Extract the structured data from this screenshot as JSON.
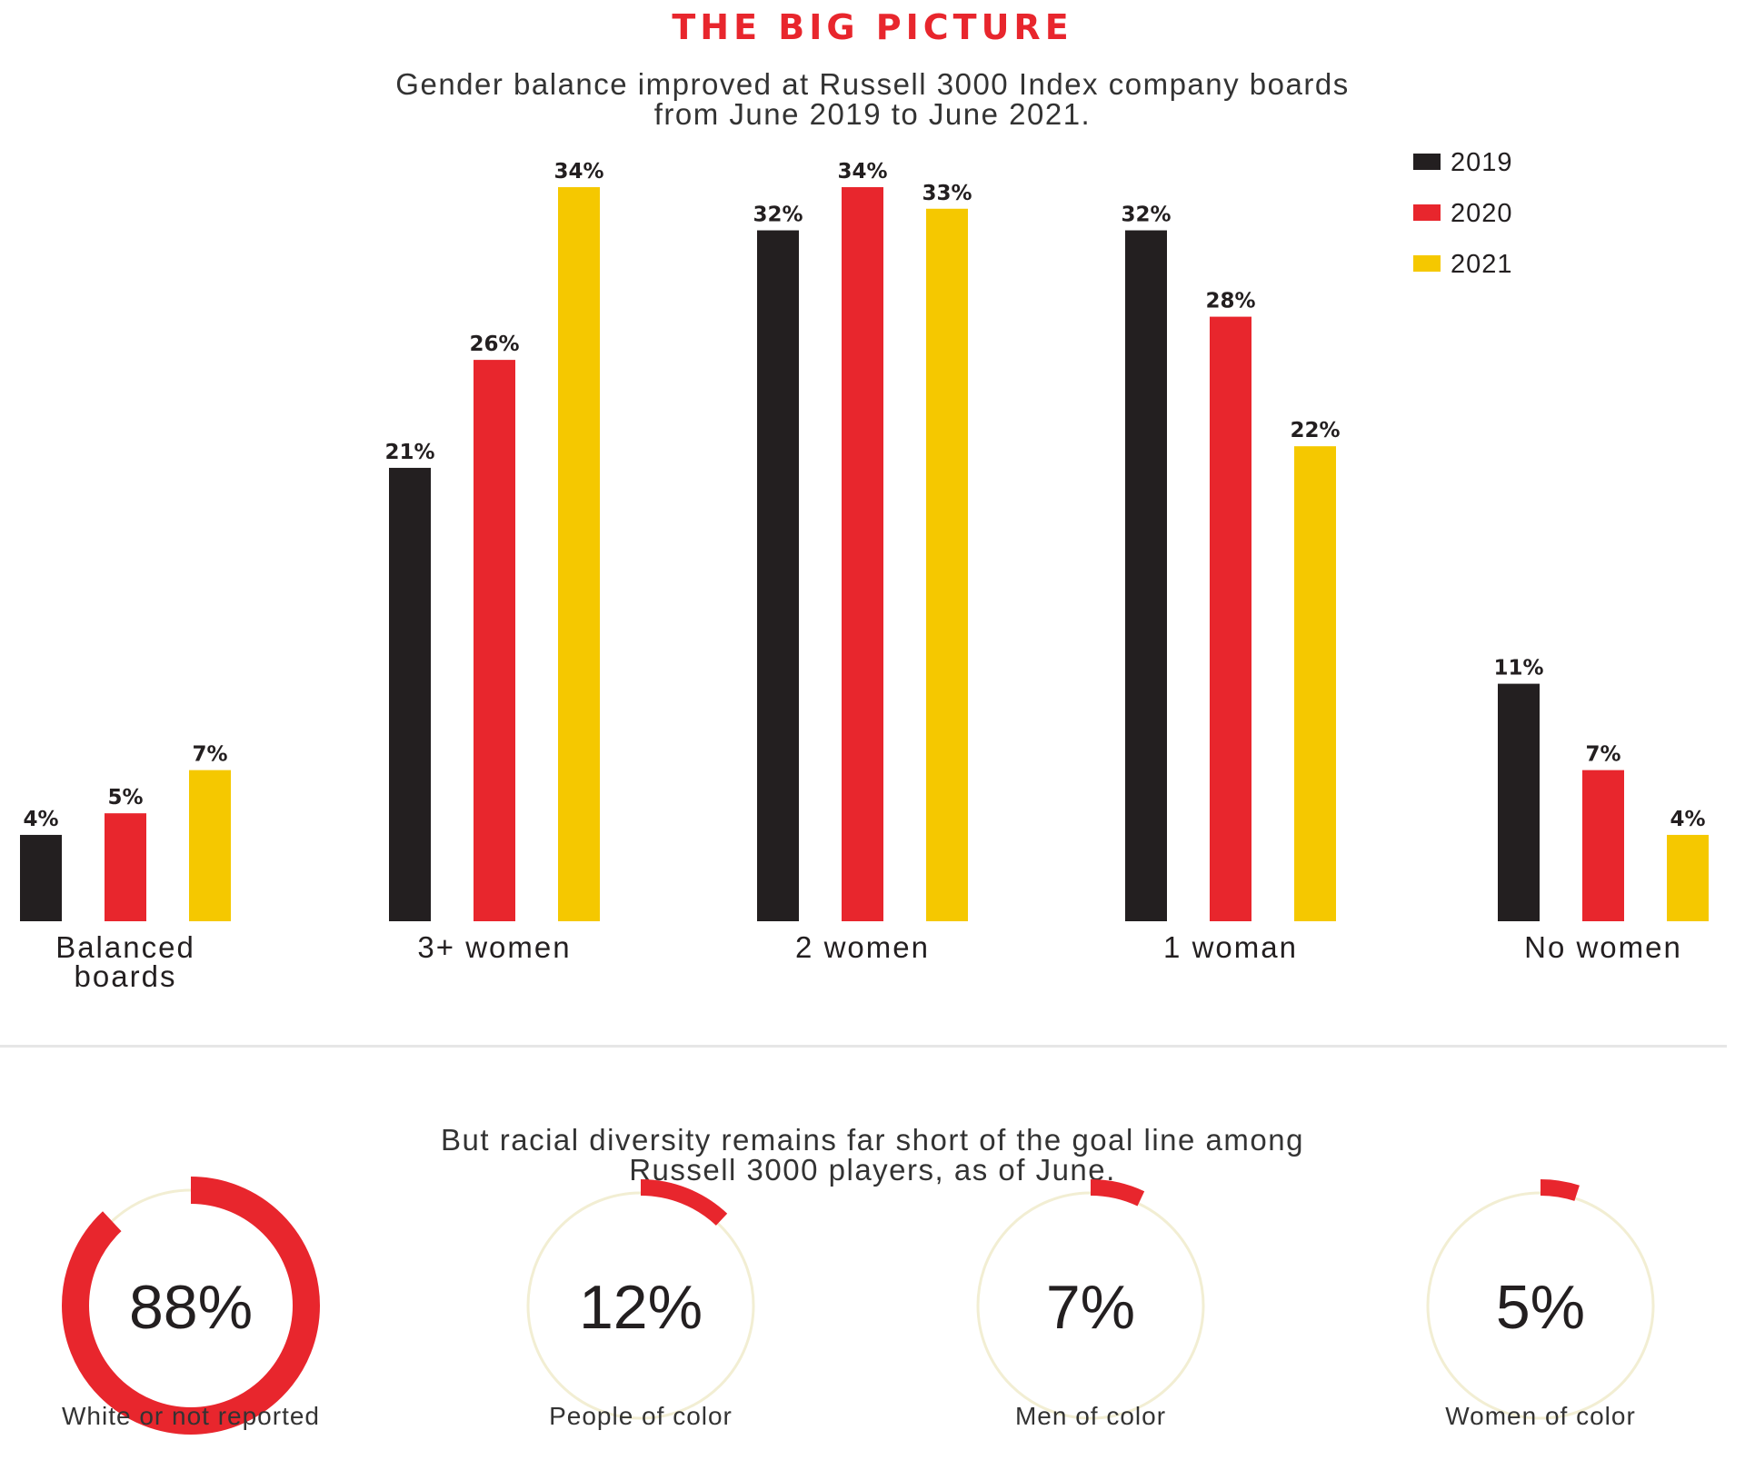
{
  "kicker": "THE BIG PICTURE",
  "chart_subtitle": [
    "Gender balance improved at Russell 3000 Index company boards",
    "from June 2019 to June 2021."
  ],
  "colors": {
    "2019": "#231f20",
    "2020": "#e8262d",
    "2021": "#f5c800",
    "accent": "#e8262d",
    "track": "#f2eed3"
  },
  "chart_data": {
    "type": "bar",
    "title": "",
    "xlabel": "",
    "ylabel": "",
    "ylim": [
      0,
      34
    ],
    "grid": false,
    "legend_position": "top-right",
    "categories": [
      [
        "Balanced",
        "boards"
      ],
      [
        "3+ women"
      ],
      [
        "2 women"
      ],
      [
        "1 woman"
      ],
      [
        "No women"
      ]
    ],
    "series": [
      {
        "name": "2019",
        "values": [
          4,
          21,
          32,
          32,
          11
        ],
        "labels": [
          "4%",
          "21%",
          "32%",
          "32%",
          "11%"
        ]
      },
      {
        "name": "2020",
        "values": [
          5,
          26,
          34,
          28,
          7
        ],
        "labels": [
          "5%",
          "26%",
          "34%",
          "28%",
          "7%"
        ]
      },
      {
        "name": "2021",
        "values": [
          7,
          34,
          33,
          22,
          4
        ],
        "labels": [
          "7%",
          "34%",
          "33%",
          "22%",
          "4%"
        ]
      }
    ]
  },
  "diversity_subtitle": [
    "But racial diversity remains far short of the goal line among",
    "Russell 3000 players, as of June."
  ],
  "diversity": [
    {
      "value": 88,
      "label": "88%",
      "caption": "White or not reported"
    },
    {
      "value": 12,
      "label": "12%",
      "caption": "People of color"
    },
    {
      "value": 7,
      "label": "7%",
      "caption": "Men of color"
    },
    {
      "value": 5,
      "label": "5%",
      "caption": "Women of color"
    }
  ]
}
